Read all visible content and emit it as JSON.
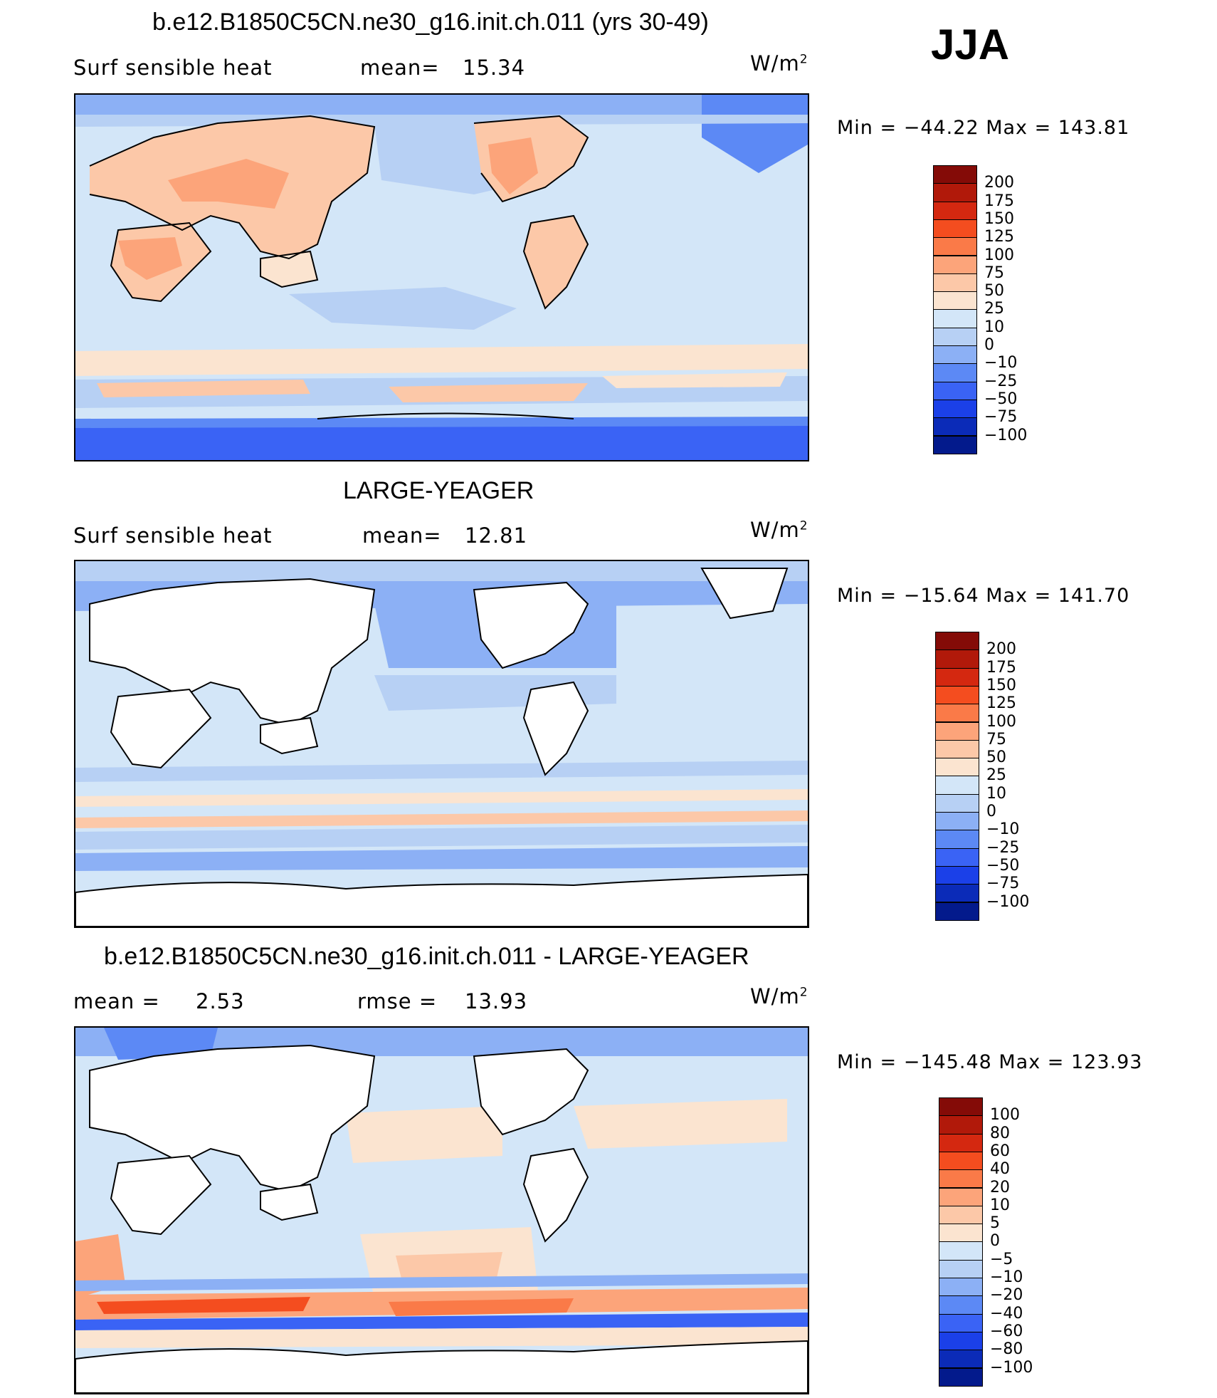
{
  "season": "JJA",
  "colors": {
    "pos": [
      "#fbe4d0",
      "#fcc8a8",
      "#fca47a",
      "#fa7a48",
      "#f44d1f",
      "#d42810",
      "#b1190a",
      "#840b07"
    ],
    "neg": [
      "#d3e6f8",
      "#b7d0f4",
      "#8cb0f5",
      "#5c89f5",
      "#3a63f5",
      "#1b40e8",
      "#0b2bb8",
      "#031a8c",
      "#02057a"
    ]
  },
  "panels": [
    {
      "title": "b.e12.B1850C5CN.ne30_g16.init.ch.011 (yrs 30-49)",
      "variable": "Surf  sensible  heat",
      "mean_label": "mean=",
      "mean_value": "15.34",
      "units": "W/m",
      "units_exp": "2",
      "minmax": "Min  =  −44.22  Max  =  143.81",
      "colorbar_labels": [
        "200",
        "175",
        "150",
        "125",
        "100",
        "75",
        "50",
        "25",
        "10",
        "0",
        "−10",
        "−25",
        "−50",
        "−75",
        "−100"
      ]
    },
    {
      "title": "LARGE-YEAGER",
      "variable": "Surf  sensible  heat",
      "mean_label": "mean=",
      "mean_value": "12.81",
      "units": "W/m",
      "units_exp": "2",
      "minmax": "Min  =  −15.64  Max  =  141.70",
      "colorbar_labels": [
        "200",
        "175",
        "150",
        "125",
        "100",
        "75",
        "50",
        "25",
        "10",
        "0",
        "−10",
        "−25",
        "−50",
        "−75",
        "−100"
      ]
    },
    {
      "title": "b.e12.B1850C5CN.ne30_g16.init.ch.011 - LARGE-YEAGER",
      "variable": "mean  =",
      "mean_value": "2.53",
      "rmse_label": "rmse  =",
      "rmse_value": "13.93",
      "units": "W/m",
      "units_exp": "2",
      "minmax": "Min  =  −145.48  Max  =  123.93",
      "colorbar_labels": [
        "100",
        "80",
        "60",
        "40",
        "20",
        "10",
        "5",
        "0",
        "−5",
        "−10",
        "−20",
        "−40",
        "−60",
        "−80",
        "−100"
      ]
    }
  ]
}
